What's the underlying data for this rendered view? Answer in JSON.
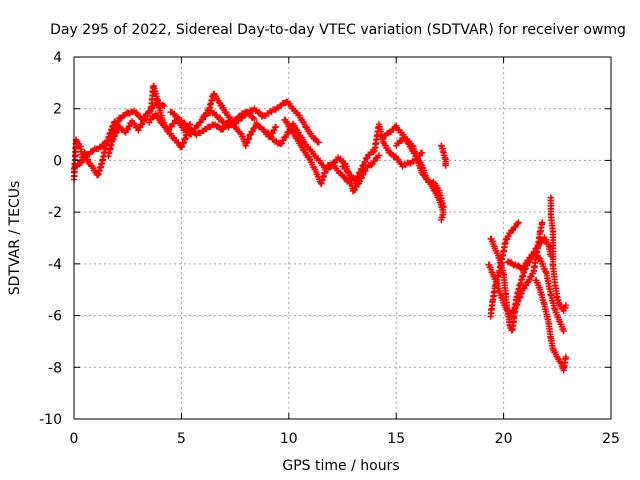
{
  "chart_data": {
    "type": "scatter",
    "title": "Day 295 of 2022, Sidereal Day-to-day VTEC variation (SDTVAR) for receiver owmg",
    "xlabel": "GPS time / hours",
    "ylabel": "SDTVAR / TECUs",
    "xlim": [
      0,
      25
    ],
    "ylim": [
      -10,
      4
    ],
    "xticks": [
      "0",
      "5",
      "10",
      "15",
      "20",
      "25"
    ],
    "yticks": [
      "4",
      "2",
      "0",
      "-2",
      "-4",
      "-6",
      "-8",
      "-10"
    ],
    "xtick_values": [
      0,
      5,
      10,
      15,
      20,
      25
    ],
    "ytick_values": [
      4,
      2,
      0,
      -2,
      -4,
      -6,
      -8,
      -10
    ],
    "grid": true,
    "marker": "+",
    "color": "#ff0000",
    "series": [
      {
        "name": "SDTVAR",
        "tracks": [
          [
            [
              0.0,
              -0.7
            ],
            [
              0.1,
              0.8
            ],
            [
              0.3,
              0.5
            ],
            [
              0.4,
              0.0
            ],
            [
              0.5,
              0.3
            ],
            [
              0.7,
              -0.1
            ],
            [
              0.9,
              -0.3
            ],
            [
              1.1,
              -0.6
            ],
            [
              1.3,
              -0.1
            ],
            [
              1.5,
              0.6
            ],
            [
              1.7,
              1.1
            ],
            [
              1.9,
              1.5
            ],
            [
              2.0,
              1.4
            ]
          ],
          [
            [
              0.0,
              -0.3
            ],
            [
              0.3,
              -0.1
            ],
            [
              0.6,
              0.2
            ],
            [
              0.9,
              0.4
            ],
            [
              1.2,
              0.5
            ],
            [
              1.5,
              0.7
            ],
            [
              1.8,
              1.1
            ],
            [
              2.1,
              1.6
            ],
            [
              2.4,
              1.8
            ],
            [
              2.8,
              1.9
            ],
            [
              3.2,
              1.6
            ],
            [
              3.5,
              1.9
            ],
            [
              3.8,
              2.2
            ],
            [
              4.2,
              2.1
            ]
          ],
          [
            [
              1.6,
              0.2
            ],
            [
              1.8,
              0.8
            ],
            [
              2.1,
              1.3
            ],
            [
              2.4,
              1.1
            ],
            [
              2.7,
              1.5
            ],
            [
              3.0,
              1.2
            ],
            [
              3.3,
              1.6
            ],
            [
              3.6,
              2.0
            ],
            [
              3.7,
              2.9
            ],
            [
              3.9,
              2.3
            ],
            [
              4.1,
              1.6
            ],
            [
              4.3,
              1.2
            ],
            [
              4.5,
              1.0
            ],
            [
              4.8,
              0.7
            ],
            [
              5.0,
              0.5
            ],
            [
              5.2,
              0.9
            ],
            [
              5.4,
              1.4
            ]
          ],
          [
            [
              3.5,
              1.5
            ],
            [
              3.8,
              1.8
            ],
            [
              4.1,
              1.4
            ],
            [
              4.4,
              1.2
            ],
            [
              4.8,
              1.6
            ],
            [
              5.1,
              1.2
            ],
            [
              5.4,
              1.0
            ],
            [
              5.7,
              1.3
            ],
            [
              6.0,
              1.6
            ],
            [
              6.3,
              2.0
            ],
            [
              6.5,
              2.6
            ],
            [
              6.8,
              2.2
            ],
            [
              7.1,
              1.8
            ],
            [
              7.4,
              1.5
            ],
            [
              7.7,
              1.7
            ],
            [
              8.0,
              1.9
            ],
            [
              8.4,
              1.6
            ]
          ],
          [
            [
              4.5,
              1.9
            ],
            [
              4.9,
              1.6
            ],
            [
              5.3,
              1.3
            ],
            [
              5.7,
              1.0
            ],
            [
              6.1,
              1.2
            ],
            [
              6.5,
              1.4
            ],
            [
              6.9,
              1.2
            ],
            [
              7.2,
              1.5
            ],
            [
              7.5,
              1.3
            ],
            [
              7.8,
              1.0
            ],
            [
              8.0,
              0.6
            ],
            [
              8.2,
              1.0
            ],
            [
              8.5,
              1.4
            ],
            [
              8.8,
              1.2
            ],
            [
              9.1,
              0.9
            ],
            [
              9.4,
              1.3
            ]
          ],
          [
            [
              6.0,
              1.7
            ],
            [
              6.4,
              1.9
            ],
            [
              6.8,
              1.6
            ],
            [
              7.2,
              1.3
            ],
            [
              7.6,
              1.5
            ],
            [
              8.0,
              1.8
            ],
            [
              8.4,
              2.0
            ],
            [
              8.8,
              1.7
            ],
            [
              9.2,
              1.9
            ],
            [
              9.6,
              2.1
            ],
            [
              9.9,
              2.3
            ],
            [
              10.2,
              2.0
            ],
            [
              10.5,
              1.7
            ],
            [
              10.8,
              1.3
            ],
            [
              11.1,
              0.9
            ],
            [
              11.4,
              0.7
            ]
          ],
          [
            [
              9.0,
              1.1
            ],
            [
              9.3,
              0.8
            ],
            [
              9.6,
              0.6
            ],
            [
              9.9,
              1.0
            ],
            [
              10.2,
              1.4
            ],
            [
              10.5,
              1.0
            ],
            [
              10.8,
              0.6
            ],
            [
              11.1,
              0.3
            ],
            [
              11.4,
              0.0
            ],
            [
              11.7,
              -0.3
            ],
            [
              12.0,
              -0.1
            ],
            [
              12.3,
              -0.4
            ],
            [
              12.6,
              -0.7
            ],
            [
              12.9,
              -0.9
            ]
          ],
          [
            [
              9.8,
              1.6
            ],
            [
              10.1,
              1.2
            ],
            [
              10.4,
              0.8
            ],
            [
              10.7,
              0.4
            ],
            [
              11.0,
              0.0
            ],
            [
              11.3,
              -0.5
            ],
            [
              11.5,
              -0.9
            ],
            [
              11.7,
              -0.4
            ],
            [
              12.0,
              -0.2
            ],
            [
              12.3,
              0.1
            ],
            [
              12.6,
              -0.1
            ],
            [
              12.8,
              -0.5
            ],
            [
              13.0,
              -1.2
            ],
            [
              13.3,
              -0.8
            ],
            [
              13.6,
              -0.3
            ],
            [
              13.9,
              -0.1
            ],
            [
              14.2,
              0.2
            ]
          ],
          [
            [
              12.5,
              -0.2
            ],
            [
              12.8,
              -0.5
            ],
            [
              13.1,
              -0.8
            ],
            [
              13.4,
              -0.3
            ],
            [
              13.7,
              0.2
            ],
            [
              14.0,
              0.4
            ],
            [
              14.2,
              1.4
            ],
            [
              14.4,
              0.7
            ],
            [
              14.7,
              0.3
            ],
            [
              15.0,
              0.1
            ],
            [
              15.3,
              -0.2
            ],
            [
              15.6,
              -0.1
            ],
            [
              15.9,
              0.0
            ],
            [
              16.2,
              0.3
            ]
          ],
          [
            [
              14.4,
              0.9
            ],
            [
              14.7,
              1.1
            ],
            [
              15.0,
              1.3
            ],
            [
              15.3,
              1.0
            ],
            [
              15.6,
              0.6
            ],
            [
              15.9,
              0.2
            ],
            [
              16.2,
              -0.2
            ],
            [
              16.4,
              -0.7
            ],
            [
              16.6,
              -0.9
            ],
            [
              16.8,
              -1.2
            ],
            [
              17.0,
              -1.5
            ],
            [
              17.2,
              -2.0
            ],
            [
              17.1,
              -2.3
            ]
          ],
          [
            [
              15.0,
              0.6
            ],
            [
              15.4,
              0.9
            ],
            [
              15.8,
              0.5
            ],
            [
              16.0,
              0.0
            ],
            [
              16.2,
              -0.5
            ],
            [
              16.5,
              -0.8
            ],
            [
              16.8,
              -0.9
            ],
            [
              17.0,
              -1.2
            ],
            [
              17.2,
              -1.8
            ]
          ],
          [
            [
              17.1,
              0.6
            ],
            [
              17.2,
              0.3
            ],
            [
              17.3,
              0.0
            ],
            [
              17.3,
              -0.2
            ]
          ],
          [
            [
              19.4,
              -6.0
            ],
            [
              19.5,
              -5.4
            ],
            [
              19.6,
              -4.9
            ],
            [
              19.7,
              -4.6
            ],
            [
              19.8,
              -4.3
            ],
            [
              19.9,
              -3.9
            ],
            [
              20.0,
              -3.5
            ],
            [
              20.1,
              -3.1
            ],
            [
              20.3,
              -2.8
            ],
            [
              20.5,
              -2.6
            ],
            [
              20.7,
              -2.4
            ]
          ],
          [
            [
              19.4,
              -3.0
            ],
            [
              19.6,
              -3.4
            ],
            [
              19.8,
              -3.8
            ],
            [
              20.0,
              -4.4
            ],
            [
              20.1,
              -5.2
            ],
            [
              20.2,
              -5.9
            ],
            [
              20.3,
              -6.4
            ],
            [
              20.4,
              -6.6
            ],
            [
              20.5,
              -6.0
            ],
            [
              20.6,
              -5.3
            ],
            [
              20.8,
              -4.7
            ],
            [
              21.0,
              -4.2
            ],
            [
              21.3,
              -3.7
            ],
            [
              21.6,
              -3.3
            ],
            [
              21.9,
              -3.0
            ],
            [
              22.1,
              -3.3
            ],
            [
              22.2,
              -3.7
            ]
          ],
          [
            [
              20.2,
              -3.9
            ],
            [
              20.4,
              -4.0
            ],
            [
              20.7,
              -4.1
            ],
            [
              20.9,
              -4.2
            ],
            [
              21.1,
              -3.9
            ],
            [
              21.4,
              -3.6
            ],
            [
              21.7,
              -3.8
            ],
            [
              22.0,
              -4.4
            ],
            [
              22.2,
              -5.2
            ],
            [
              22.4,
              -5.8
            ],
            [
              22.6,
              -6.2
            ],
            [
              22.8,
              -6.6
            ]
          ],
          [
            [
              19.3,
              -4.0
            ],
            [
              19.5,
              -4.4
            ],
            [
              19.7,
              -4.8
            ],
            [
              19.9,
              -5.3
            ],
            [
              20.1,
              -5.7
            ],
            [
              20.3,
              -6.0
            ],
            [
              20.6,
              -5.6
            ],
            [
              20.9,
              -5.0
            ],
            [
              21.2,
              -4.6
            ],
            [
              21.4,
              -4.3
            ],
            [
              21.5,
              -3.8
            ],
            [
              21.6,
              -3.3
            ],
            [
              21.7,
              -2.8
            ],
            [
              21.8,
              -2.4
            ]
          ],
          [
            [
              21.5,
              -4.6
            ],
            [
              21.7,
              -5.0
            ],
            [
              21.9,
              -5.6
            ],
            [
              22.1,
              -6.3
            ],
            [
              22.2,
              -6.9
            ],
            [
              22.3,
              -7.3
            ],
            [
              22.5,
              -7.6
            ],
            [
              22.7,
              -7.9
            ],
            [
              22.8,
              -8.1
            ],
            [
              22.9,
              -7.6
            ]
          ],
          [
            [
              22.2,
              -1.4
            ],
            [
              22.2,
              -2.1
            ],
            [
              22.3,
              -2.8
            ],
            [
              22.3,
              -3.5
            ],
            [
              22.3,
              -4.1
            ],
            [
              22.4,
              -4.8
            ],
            [
              22.5,
              -5.3
            ],
            [
              22.6,
              -5.6
            ],
            [
              22.8,
              -5.8
            ],
            [
              22.9,
              -5.6
            ]
          ]
        ]
      }
    ]
  }
}
